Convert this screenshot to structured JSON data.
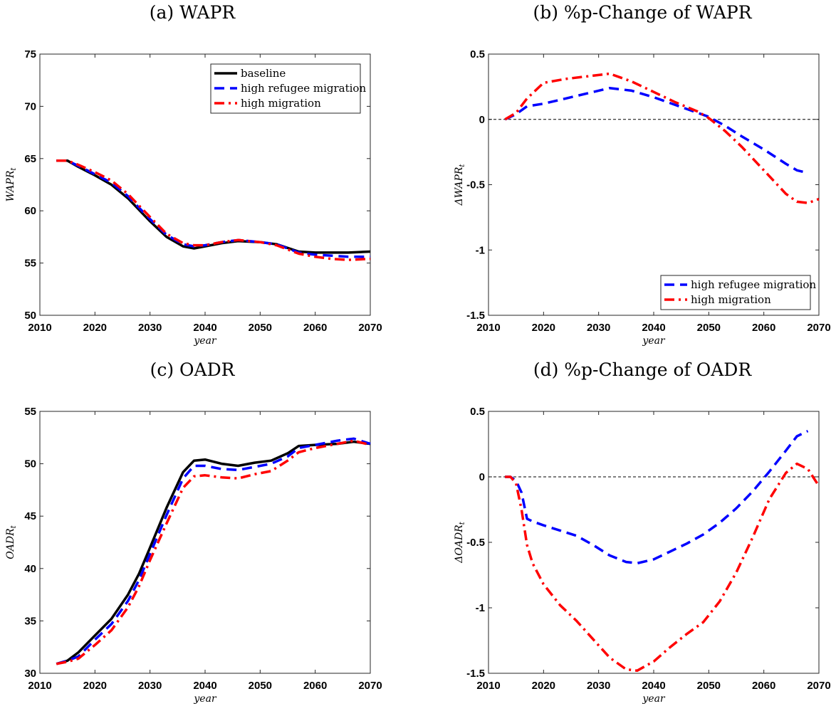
{
  "colors": {
    "baseline": "#000000",
    "refugee": "#0000ff",
    "high": "#ff0000",
    "zero_line": "#000000"
  },
  "chart_data": [
    {
      "type": "line",
      "title": "(a) WAPR",
      "xlabel": "year",
      "ylabel": "WAPR",
      "ylabel_sub": "t",
      "xlim": [
        2010,
        2070
      ],
      "ylim": [
        50,
        75
      ],
      "xticks": [
        2010,
        2020,
        2030,
        2040,
        2050,
        2060,
        2070
      ],
      "yticks": [
        50,
        55,
        60,
        65,
        70,
        75
      ],
      "legend": "top-right",
      "x": [
        2013,
        2015,
        2017,
        2020,
        2023,
        2026,
        2030,
        2033,
        2036,
        2038,
        2040,
        2043,
        2046,
        2050,
        2053,
        2057,
        2060,
        2063,
        2066,
        2070
      ],
      "series": [
        {
          "name": "baseline",
          "style": "solid",
          "color": "#000000",
          "values": [
            64.8,
            64.8,
            64.2,
            63.4,
            62.5,
            61.2,
            59.0,
            57.5,
            56.6,
            56.4,
            56.6,
            56.9,
            57.1,
            57.0,
            56.8,
            56.1,
            56.0,
            56.0,
            56.0,
            56.1
          ]
        },
        {
          "name": "high refugee migration",
          "style": "dashed",
          "color": "#0000ff",
          "values": [
            64.8,
            64.8,
            64.3,
            63.5,
            62.7,
            61.4,
            59.2,
            57.7,
            56.8,
            56.6,
            56.7,
            57.0,
            57.2,
            57.0,
            56.8,
            56.0,
            55.8,
            55.7,
            55.6,
            55.6
          ]
        },
        {
          "name": "high migration",
          "style": "dashdot",
          "color": "#ff0000",
          "values": [
            64.8,
            64.8,
            64.4,
            63.7,
            62.9,
            61.6,
            59.4,
            57.8,
            56.9,
            56.7,
            56.7,
            57.0,
            57.2,
            57.0,
            56.7,
            55.9,
            55.6,
            55.4,
            55.3,
            55.4
          ]
        }
      ]
    },
    {
      "type": "line",
      "title": "(b) %p-Change of WAPR",
      "xlabel": "year",
      "ylabel": "ΔWAPR",
      "ylabel_sub": "t",
      "xlim": [
        2010,
        2070
      ],
      "ylim": [
        -1.5,
        0.5
      ],
      "xticks": [
        2010,
        2020,
        2030,
        2040,
        2050,
        2060,
        2070
      ],
      "yticks": [
        -1.5,
        -1,
        -0.5,
        0,
        0.5
      ],
      "ytick_labels": [
        "-1.5",
        "-1",
        "-0.5",
        "0",
        "0.5"
      ],
      "zero_line": true,
      "legend": "bottom-right",
      "x": [
        2013,
        2015,
        2017,
        2020,
        2024,
        2028,
        2032,
        2036,
        2040,
        2044,
        2048,
        2050,
        2053,
        2056,
        2060,
        2064,
        2066,
        2068,
        2070
      ],
      "series": [
        {
          "name": "high refugee migration",
          "style": "dashed",
          "color": "#0000ff",
          "values": [
            0.0,
            0.04,
            0.1,
            0.12,
            0.16,
            0.2,
            0.24,
            0.22,
            0.17,
            0.11,
            0.05,
            0.02,
            -0.05,
            -0.13,
            -0.23,
            -0.34,
            -0.39,
            -0.41,
            null
          ]
        },
        {
          "name": "high migration",
          "style": "dashdot",
          "color": "#ff0000",
          "values": [
            0.0,
            0.05,
            0.16,
            0.28,
            0.31,
            0.33,
            0.35,
            0.29,
            0.21,
            0.13,
            0.06,
            0.01,
            -0.09,
            -0.21,
            -0.39,
            -0.57,
            -0.63,
            -0.64,
            -0.61
          ]
        }
      ]
    },
    {
      "type": "line",
      "title": "(c) OADR",
      "xlabel": "year",
      "ylabel": "OADR",
      "ylabel_sub": "t",
      "xlim": [
        2010,
        2070
      ],
      "ylim": [
        30,
        55
      ],
      "xticks": [
        2010,
        2020,
        2030,
        2040,
        2050,
        2060,
        2070
      ],
      "yticks": [
        30,
        35,
        40,
        45,
        50,
        55
      ],
      "x": [
        2013,
        2015,
        2017,
        2020,
        2023,
        2026,
        2028,
        2030,
        2033,
        2036,
        2038,
        2040,
        2043,
        2046,
        2049,
        2052,
        2055,
        2057,
        2060,
        2064,
        2067,
        2070
      ],
      "series": [
        {
          "name": "baseline",
          "style": "solid",
          "color": "#000000",
          "values": [
            30.9,
            31.2,
            32.0,
            33.6,
            35.2,
            37.5,
            39.5,
            42.0,
            45.8,
            49.2,
            50.3,
            50.4,
            50.0,
            49.8,
            50.1,
            50.3,
            51.0,
            51.7,
            51.8,
            51.9,
            52.1,
            51.9
          ]
        },
        {
          "name": "high refugee migration",
          "style": "dashed",
          "color": "#0000ff",
          "values": [
            30.9,
            31.2,
            31.6,
            33.2,
            34.7,
            36.9,
            38.9,
            41.4,
            45.1,
            48.6,
            49.8,
            49.8,
            49.5,
            49.4,
            49.7,
            50.0,
            50.7,
            51.5,
            51.8,
            52.2,
            52.4,
            51.9
          ]
        },
        {
          "name": "high migration",
          "style": "dashdot",
          "color": "#ff0000",
          "values": [
            30.9,
            31.1,
            31.4,
            32.7,
            34.1,
            36.3,
            38.3,
            40.8,
            44.3,
            47.7,
            48.8,
            48.9,
            48.7,
            48.6,
            49.0,
            49.3,
            50.3,
            51.1,
            51.5,
            51.9,
            52.2,
            51.8
          ]
        }
      ]
    },
    {
      "type": "line",
      "title": "(d) %p-Change of OADR",
      "xlabel": "year",
      "ylabel": "ΔOADR",
      "ylabel_sub": "t",
      "xlim": [
        2010,
        2070
      ],
      "ylim": [
        -1.5,
        0.5
      ],
      "xticks": [
        2010,
        2020,
        2030,
        2040,
        2050,
        2060,
        2070
      ],
      "yticks": [
        -1.5,
        -1,
        -0.5,
        0,
        0.5
      ],
      "ytick_labels": [
        "-1.5",
        "-1",
        "-0.5",
        "0",
        "0.5"
      ],
      "zero_line": true,
      "x": [
        2013,
        2014,
        2015,
        2016,
        2017,
        2018,
        2020,
        2023,
        2026,
        2029,
        2032,
        2035,
        2037,
        2040,
        2043,
        2046,
        2049,
        2052,
        2055,
        2058,
        2061,
        2064,
        2066,
        2068,
        2070
      ],
      "series": [
        {
          "name": "high refugee migration",
          "style": "dashed",
          "color": "#0000ff",
          "values": [
            0.0,
            0.0,
            -0.03,
            -0.12,
            -0.32,
            -0.34,
            -0.37,
            -0.41,
            -0.45,
            -0.52,
            -0.6,
            -0.65,
            -0.66,
            -0.63,
            -0.57,
            -0.51,
            -0.44,
            -0.35,
            -0.24,
            -0.11,
            0.04,
            0.2,
            0.31,
            0.35,
            null
          ]
        },
        {
          "name": "high migration",
          "style": "dashdot",
          "color": "#ff0000",
          "values": [
            0.0,
            0.0,
            -0.05,
            -0.25,
            -0.52,
            -0.66,
            -0.82,
            -0.98,
            -1.1,
            -1.24,
            -1.38,
            -1.47,
            -1.48,
            -1.41,
            -1.3,
            -1.2,
            -1.11,
            -0.95,
            -0.73,
            -0.46,
            -0.17,
            0.03,
            0.1,
            0.06,
            -0.07
          ]
        }
      ]
    }
  ]
}
